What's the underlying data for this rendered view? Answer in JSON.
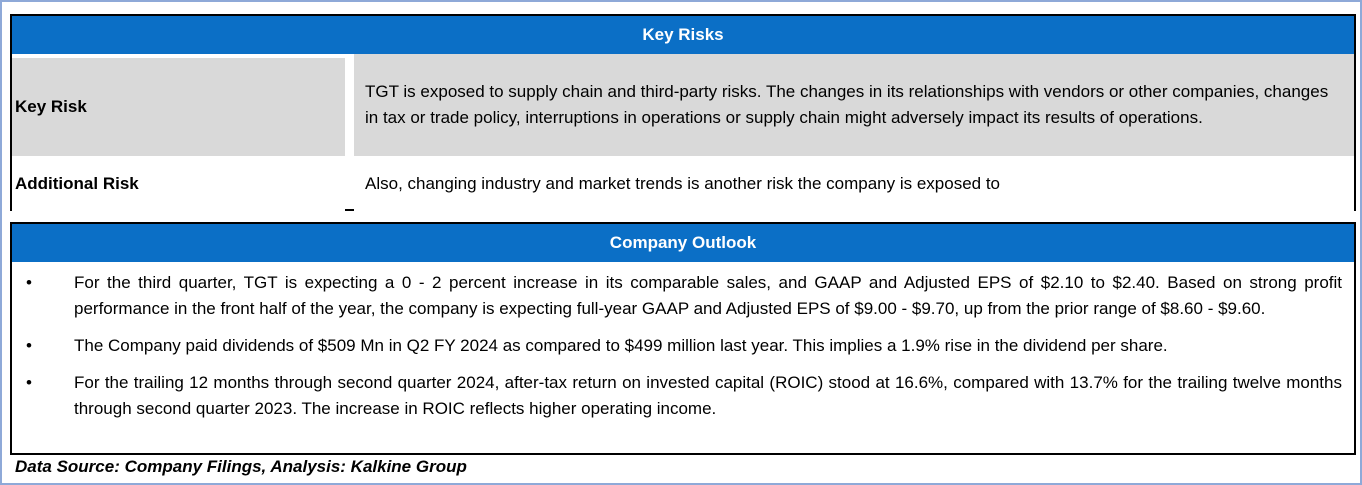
{
  "key_risks": {
    "title": "Key Risks",
    "rows": [
      {
        "label": "Key Risk",
        "text": "TGT is exposed to supply chain and third-party risks. The changes in its relationships with vendors or other companies, changes in tax or trade policy, interruptions in operations or supply chain might adversely impact its results of operations."
      },
      {
        "label": "Additional Risk",
        "text": "Also, changing industry and market trends is another risk the company is exposed to"
      }
    ]
  },
  "company_outlook": {
    "title": "Company Outlook",
    "bullet_symbol": "•",
    "items": [
      "For the third quarter, TGT is expecting a 0 - 2 percent increase in its comparable sales, and GAAP and Adjusted EPS of $2.10 to $2.40. Based on strong profit performance in the front half of the year, the company is expecting full-year GAAP and Adjusted EPS of $9.00 - $9.70, up from the prior range of $8.60 - $9.60.",
      "The Company paid dividends of $509 Mn in Q2 FY 2024 as compared to $499 million last year. This implies a 1.9% rise in the dividend per share.",
      "For the trailing 12 months through second quarter 2024, after-tax return on invested capital (ROIC) stood at 16.6%, compared with 13.7% for the trailing twelve months through second quarter 2023. The increase in ROIC reflects higher operating income."
    ]
  },
  "source": "Data Source: Company Filings, Analysis: Kalkine Group",
  "colors": {
    "header_bg": "#0b6fc6",
    "header_text": "#ffffff",
    "row_shade": "#d9d9d9",
    "frame_border": "#8ea9d8"
  }
}
